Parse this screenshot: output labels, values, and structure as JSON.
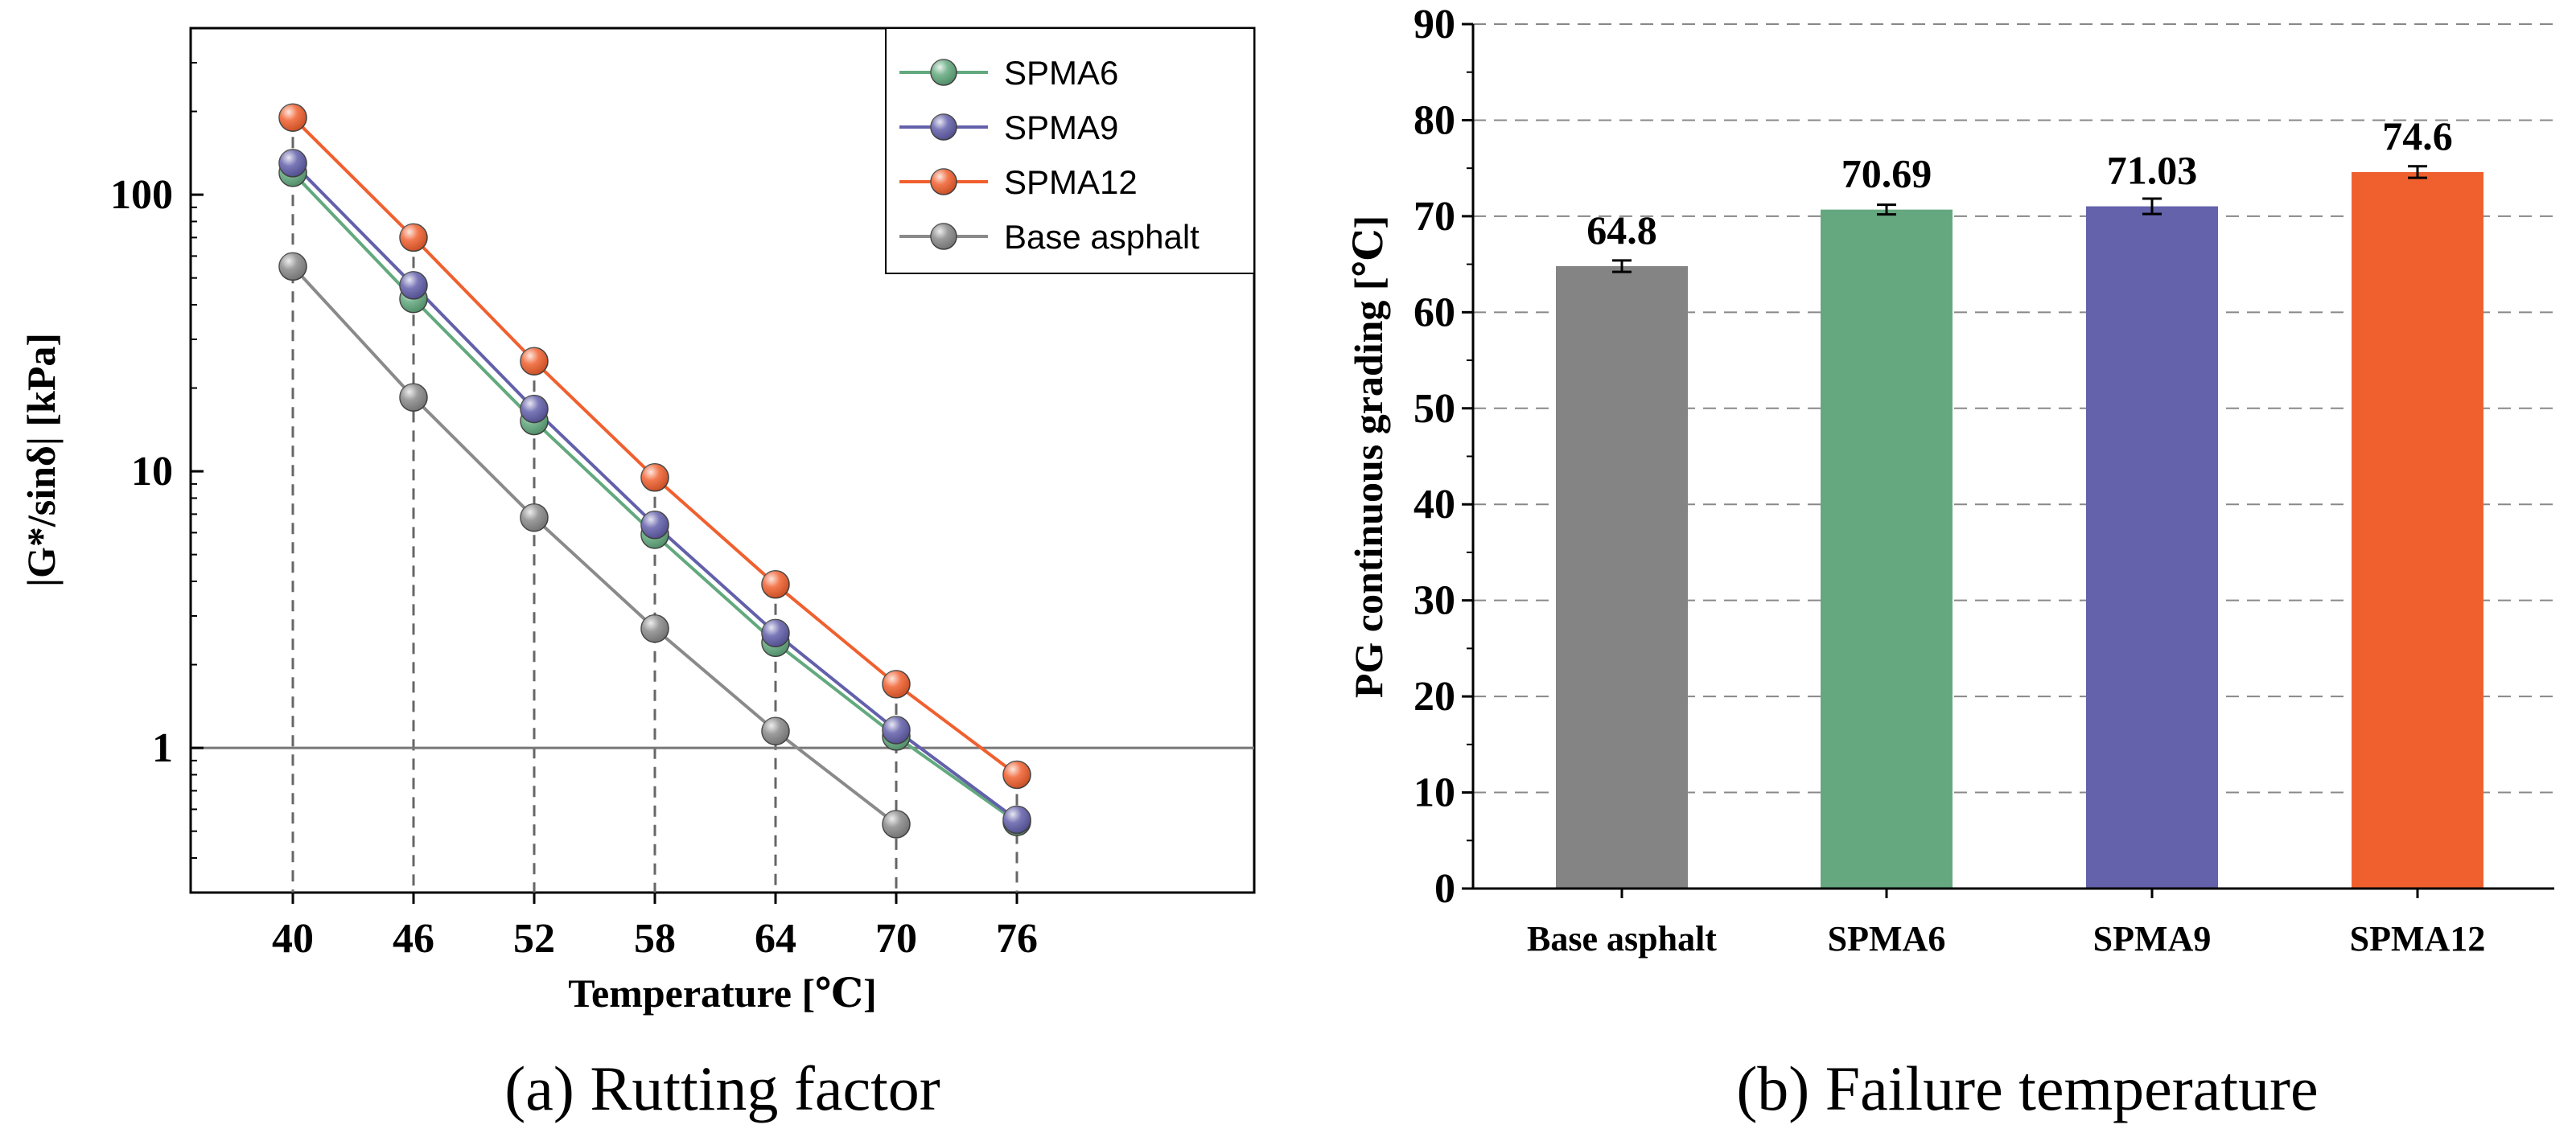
{
  "chart_data": [
    {
      "id": "rutting",
      "type": "line",
      "yscale": "log",
      "title": "",
      "caption": "(a) Rutting factor",
      "xlabel": "Temperature [℃]",
      "ylabel": "|G*/sinδ| [kPa]",
      "x": [
        40,
        46,
        52,
        58,
        64,
        70,
        76
      ],
      "xticks": [
        "40",
        "46",
        "52",
        "58",
        "64",
        "70",
        "76"
      ],
      "yticks": [
        {
          "value": 1,
          "label": "1"
        },
        {
          "value": 10,
          "label": "10"
        },
        {
          "value": 100,
          "label": "100"
        }
      ],
      "ylim": [
        0.3,
        400
      ],
      "reference_line": 1,
      "legend_position": "top-right",
      "series": [
        {
          "name": "SPMA6",
          "color": "#63a97e",
          "values": [
            120,
            42,
            15.2,
            5.9,
            2.4,
            1.1,
            0.54
          ]
        },
        {
          "name": "SPMA9",
          "color": "#6360ab",
          "values": [
            130,
            47,
            16.8,
            6.4,
            2.6,
            1.16,
            0.55
          ]
        },
        {
          "name": "SPMA12",
          "color": "#f0602f",
          "values": [
            190,
            70,
            25,
            9.5,
            3.9,
            1.7,
            0.8
          ]
        },
        {
          "name": "Base asphalt",
          "color": "#8a8a8a",
          "values": [
            55,
            18.5,
            6.8,
            2.7,
            1.15,
            0.53,
            null
          ]
        }
      ]
    },
    {
      "id": "failure",
      "type": "bar",
      "caption": "(b) Failure temperature",
      "xlabel": "",
      "ylabel": "PG continuous grading [℃]",
      "categories": [
        "Base asphalt",
        "SPMA6",
        "SPMA9",
        "SPMA12"
      ],
      "values": [
        64.8,
        70.69,
        71.03,
        74.6
      ],
      "value_labels": [
        "64.8",
        "70.69",
        "71.03",
        "74.6"
      ],
      "errors": [
        0.6,
        0.5,
        0.8,
        0.6
      ],
      "colors": [
        "#848484",
        "#65a880",
        "#6362aa",
        "#f0602f"
      ],
      "ylim": [
        0,
        90
      ],
      "yticks": [
        {
          "value": 0,
          "label": "0"
        },
        {
          "value": 10,
          "label": "10"
        },
        {
          "value": 20,
          "label": "20"
        },
        {
          "value": 30,
          "label": "30"
        },
        {
          "value": 40,
          "label": "40"
        },
        {
          "value": 50,
          "label": "50"
        },
        {
          "value": 60,
          "label": "60"
        },
        {
          "value": 70,
          "label": "70"
        },
        {
          "value": 80,
          "label": "80"
        },
        {
          "value": 90,
          "label": "90"
        }
      ],
      "grid": true
    }
  ]
}
